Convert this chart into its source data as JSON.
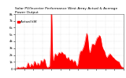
{
  "title": "Solar PV/Inverter Performance West Array Actual & Average Power Output",
  "title_fontsize": 3.2,
  "bg_color": "#ffffff",
  "plot_bg_color": "#ffffff",
  "grid_color": "#aaaaaa",
  "bar_color": "#ff0000",
  "ylim": [
    0,
    8000
  ],
  "num_points": 500,
  "legend_label": "Actual kW",
  "legend_fontsize": 3.0,
  "ytick_labels": [
    "0",
    "1k",
    "2k",
    "3k",
    "4k",
    "5k",
    "6k",
    "7k",
    "8k"
  ],
  "ytick_values": [
    0,
    1000,
    2000,
    3000,
    4000,
    5000,
    6000,
    7000,
    8000
  ],
  "tick_fontsize": 2.8
}
